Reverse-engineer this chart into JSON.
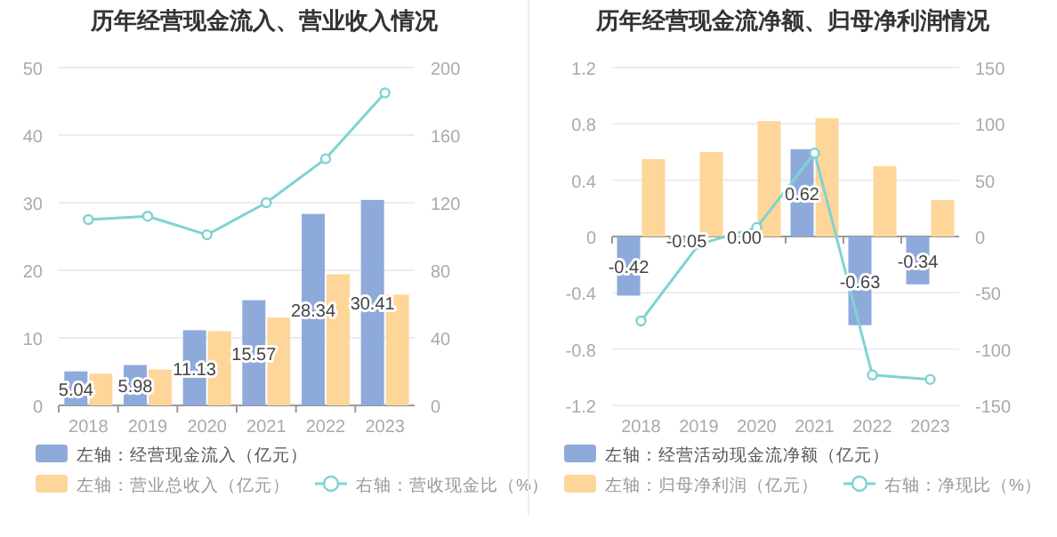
{
  "chart_data": [
    {
      "type": "bar",
      "title": "历年经营现金流入、营业收入情况",
      "categories": [
        "2018",
        "2019",
        "2020",
        "2021",
        "2022",
        "2023"
      ],
      "series": [
        {
          "name": "左轴：经营现金流入（亿元）",
          "color": "#8eaadb",
          "values": [
            5.04,
            5.98,
            11.13,
            15.57,
            28.34,
            30.41
          ],
          "value_labels": [
            "5.04",
            "5.98",
            "11.13",
            "15.57",
            "28.34",
            "30.41"
          ]
        },
        {
          "name": "左轴：营业总收入（亿元）",
          "color": "#ffd699",
          "values": [
            4.7,
            5.3,
            11.0,
            13.0,
            19.4,
            16.4
          ]
        },
        {
          "name": "右轴：营收现金比（%）",
          "type": "line",
          "axis": "y2",
          "color": "#7fd3d3",
          "values": [
            110,
            112,
            101,
            120,
            146,
            185
          ]
        }
      ],
      "ylim": [
        0,
        50
      ],
      "yticks": [
        0,
        10,
        20,
        30,
        40,
        50
      ],
      "y2lim": [
        0,
        200
      ],
      "y2ticks": [
        0,
        40,
        80,
        120,
        160,
        200
      ],
      "grid": "y",
      "legend": "bottom",
      "marker": "circle"
    },
    {
      "type": "bar",
      "title": "历年经营现金流净额、归母净利润情况",
      "categories": [
        "2018",
        "2019",
        "2020",
        "2021",
        "2022",
        "2023"
      ],
      "series": [
        {
          "name": "左轴：经营活动现金流净额（亿元）",
          "color": "#8eaadb",
          "values": [
            -0.42,
            -0.05,
            0.0,
            0.62,
            -0.63,
            -0.34
          ],
          "value_labels": [
            "-0.42",
            "-0.05",
            "0.00",
            "0.62",
            "-0.63",
            "-0.34"
          ]
        },
        {
          "name": "左轴：归母净利润（亿元）",
          "color": "#ffd699",
          "values": [
            0.55,
            0.6,
            0.82,
            0.84,
            0.5,
            0.26
          ]
        },
        {
          "name": "右轴：净现比（%）",
          "type": "line",
          "axis": "y2",
          "color": "#7fd3d3",
          "values": [
            -75,
            -7,
            8,
            74,
            -123,
            -127
          ]
        }
      ],
      "ylim": [
        -1.2,
        1.2
      ],
      "yticks": [
        -1.2,
        -0.8,
        -0.4,
        0,
        0.4,
        0.8,
        1.2
      ],
      "y2lim": [
        -150,
        150
      ],
      "y2ticks": [
        -150,
        -100,
        -50,
        0,
        50,
        100,
        150
      ],
      "grid": "y",
      "legend": "bottom",
      "marker": "circle"
    }
  ]
}
